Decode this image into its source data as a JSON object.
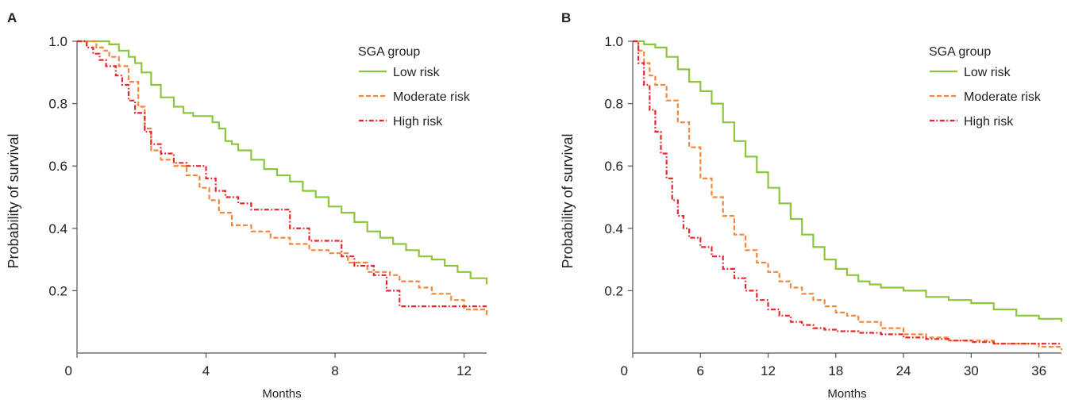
{
  "chart_data": [
    {
      "type": "line",
      "panel": "A",
      "xlabel": "Months",
      "ylabel": "Probability of survival",
      "xlim": [
        0,
        12.7
      ],
      "ylim": [
        0,
        1.0
      ],
      "xticks": [
        0,
        4,
        8,
        12
      ],
      "yticks": [
        0.2,
        0.4,
        0.6,
        0.8,
        1.0
      ],
      "legend": {
        "title": "SGA group",
        "placement": "top-right"
      },
      "series": [
        {
          "name": "Low risk",
          "color": "#8cc63f",
          "dash": "solid",
          "x": [
            0,
            0.8,
            1.0,
            1.3,
            1.6,
            1.8,
            2.0,
            2.3,
            2.6,
            3.0,
            3.3,
            3.6,
            4.0,
            4.2,
            4.4,
            4.6,
            4.8,
            5.0,
            5.4,
            5.8,
            6.2,
            6.6,
            7.0,
            7.4,
            7.8,
            8.2,
            8.6,
            9.0,
            9.4,
            9.8,
            10.2,
            10.6,
            11.0,
            11.4,
            11.8,
            12.2,
            12.7
          ],
          "y": [
            1.0,
            1.0,
            0.99,
            0.97,
            0.95,
            0.93,
            0.9,
            0.86,
            0.82,
            0.79,
            0.77,
            0.76,
            0.76,
            0.74,
            0.72,
            0.68,
            0.67,
            0.65,
            0.62,
            0.59,
            0.57,
            0.55,
            0.52,
            0.5,
            0.47,
            0.45,
            0.42,
            0.39,
            0.37,
            0.35,
            0.33,
            0.31,
            0.3,
            0.28,
            0.26,
            0.24,
            0.22
          ]
        },
        {
          "name": "Moderate risk",
          "color": "#f0873c",
          "dash": "dashed",
          "x": [
            0,
            0.4,
            0.6,
            0.8,
            1.0,
            1.3,
            1.6,
            1.9,
            2.1,
            2.3,
            2.6,
            3.0,
            3.4,
            3.8,
            4.1,
            4.4,
            4.8,
            5.4,
            6.0,
            6.6,
            7.2,
            7.8,
            8.4,
            9.0,
            9.7,
            10.0,
            10.6,
            11.0,
            11.6,
            12.0,
            12.7
          ],
          "y": [
            1.0,
            1.0,
            0.98,
            0.97,
            0.95,
            0.92,
            0.87,
            0.79,
            0.72,
            0.65,
            0.62,
            0.6,
            0.57,
            0.53,
            0.49,
            0.45,
            0.41,
            0.39,
            0.37,
            0.35,
            0.33,
            0.32,
            0.29,
            0.26,
            0.25,
            0.23,
            0.21,
            0.19,
            0.17,
            0.14,
            0.12
          ]
        },
        {
          "name": "High risk",
          "color": "#e8262e",
          "dash": "dashdot",
          "x": [
            0,
            0.3,
            0.5,
            0.7,
            0.9,
            1.2,
            1.4,
            1.6,
            1.8,
            2.1,
            2.3,
            2.6,
            3.0,
            3.4,
            4.0,
            4.3,
            4.6,
            5.0,
            5.4,
            5.8,
            6.6,
            7.2,
            8.2,
            8.6,
            9.2,
            9.6,
            10.0,
            12.7
          ],
          "y": [
            1.0,
            0.98,
            0.96,
            0.94,
            0.92,
            0.89,
            0.86,
            0.81,
            0.77,
            0.71,
            0.67,
            0.64,
            0.61,
            0.6,
            0.56,
            0.52,
            0.5,
            0.48,
            0.46,
            0.46,
            0.4,
            0.36,
            0.31,
            0.28,
            0.25,
            0.2,
            0.15,
            0.15
          ]
        }
      ]
    },
    {
      "type": "line",
      "panel": "B",
      "xlabel": "Months",
      "ylabel": "Probability of survival",
      "xlim": [
        0,
        38
      ],
      "ylim": [
        0,
        1.0
      ],
      "xticks": [
        0,
        6,
        12,
        18,
        24,
        30,
        36
      ],
      "yticks": [
        0.2,
        0.4,
        0.6,
        0.8,
        1.0
      ],
      "legend": {
        "title": "SGA group",
        "placement": "top-right"
      },
      "series": [
        {
          "name": "Low risk",
          "color": "#8cc63f",
          "dash": "solid",
          "x": [
            0,
            1,
            2,
            3,
            4,
            5,
            6,
            7,
            8,
            9,
            10,
            11,
            12,
            13,
            14,
            15,
            16,
            17,
            18,
            19,
            20,
            21,
            22,
            24,
            26,
            28,
            30,
            32,
            34,
            36,
            38
          ],
          "y": [
            1.0,
            0.99,
            0.98,
            0.95,
            0.91,
            0.87,
            0.84,
            0.8,
            0.74,
            0.68,
            0.63,
            0.58,
            0.53,
            0.48,
            0.43,
            0.38,
            0.34,
            0.3,
            0.27,
            0.25,
            0.23,
            0.22,
            0.21,
            0.2,
            0.18,
            0.17,
            0.16,
            0.14,
            0.12,
            0.11,
            0.1
          ]
        },
        {
          "name": "Moderate risk",
          "color": "#f0873c",
          "dash": "dashed",
          "x": [
            0,
            0.5,
            1,
            1.5,
            2,
            3,
            4,
            5,
            6,
            7,
            8,
            9,
            10,
            11,
            12,
            13,
            14,
            15,
            16,
            17,
            18,
            19,
            20,
            22,
            24,
            26,
            28,
            30,
            32,
            34,
            36,
            38
          ],
          "y": [
            1.0,
            0.97,
            0.93,
            0.89,
            0.86,
            0.81,
            0.74,
            0.66,
            0.56,
            0.5,
            0.44,
            0.38,
            0.33,
            0.29,
            0.26,
            0.23,
            0.21,
            0.19,
            0.17,
            0.15,
            0.13,
            0.12,
            0.1,
            0.08,
            0.06,
            0.05,
            0.04,
            0.04,
            0.03,
            0.03,
            0.02,
            0.01
          ]
        },
        {
          "name": "High risk",
          "color": "#e8262e",
          "dash": "dashdot",
          "x": [
            0,
            0.5,
            1,
            1.5,
            2,
            2.5,
            3,
            3.5,
            4,
            4.5,
            5,
            6,
            7,
            8,
            9,
            10,
            11,
            12,
            13,
            14,
            15,
            16,
            17,
            18,
            20,
            22,
            24,
            26,
            28,
            30,
            32,
            34,
            36,
            38
          ],
          "y": [
            1.0,
            0.93,
            0.86,
            0.78,
            0.71,
            0.64,
            0.56,
            0.49,
            0.44,
            0.4,
            0.37,
            0.34,
            0.31,
            0.27,
            0.24,
            0.2,
            0.17,
            0.14,
            0.12,
            0.1,
            0.09,
            0.08,
            0.075,
            0.07,
            0.065,
            0.06,
            0.05,
            0.045,
            0.04,
            0.035,
            0.03,
            0.03,
            0.03,
            0.03
          ]
        }
      ]
    }
  ]
}
